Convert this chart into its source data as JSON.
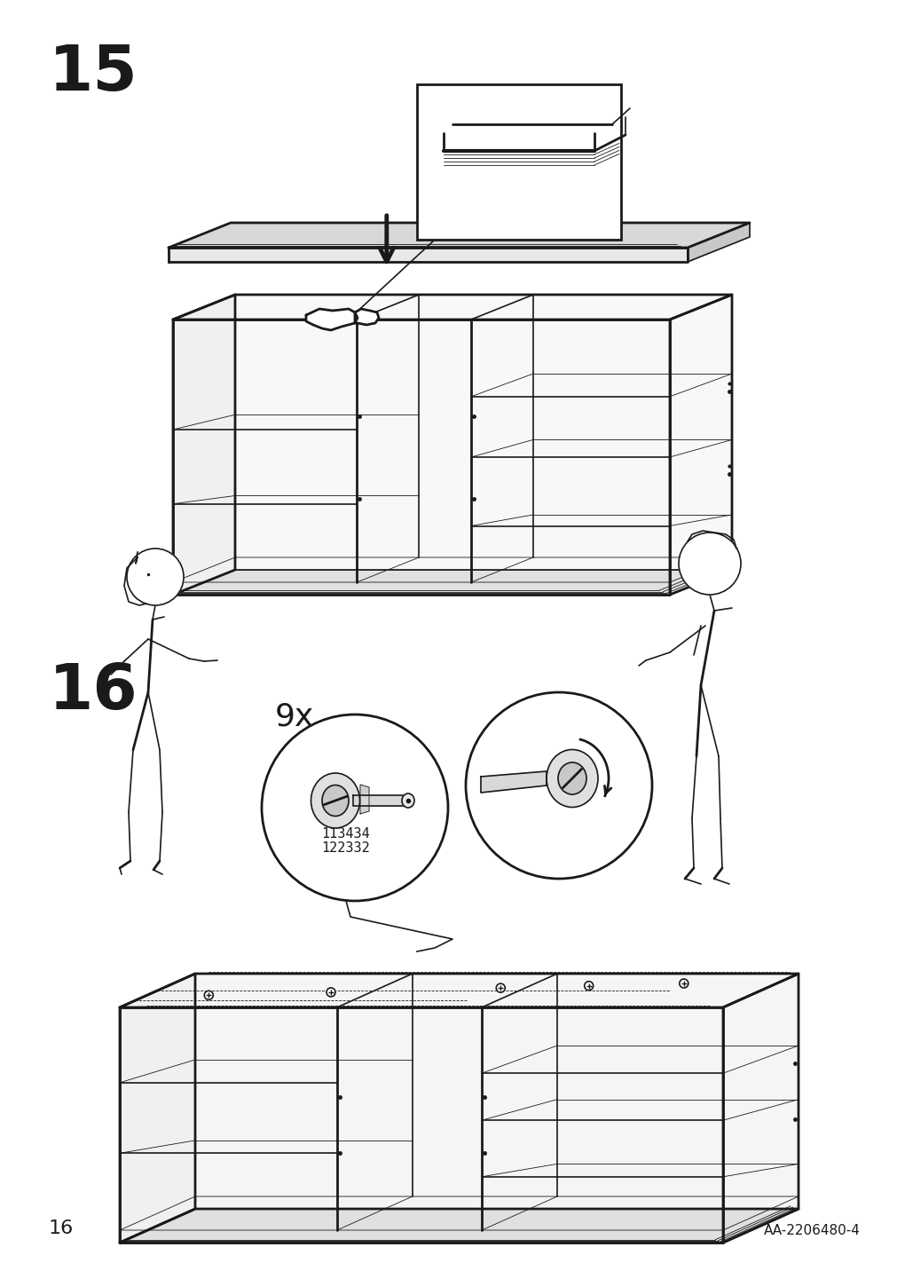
{
  "background_color": "#ffffff",
  "page_number": "16",
  "reference_code": "AA-2206480-4",
  "step15_number": "15",
  "step16_number": "16",
  "step16_quantity": "9x",
  "part_numbers_line1": "122332",
  "part_numbers_line2": "113434",
  "line_color": "#1a1a1a",
  "light_gray": "#e8e8e8",
  "mid_gray": "#d0d0d0"
}
